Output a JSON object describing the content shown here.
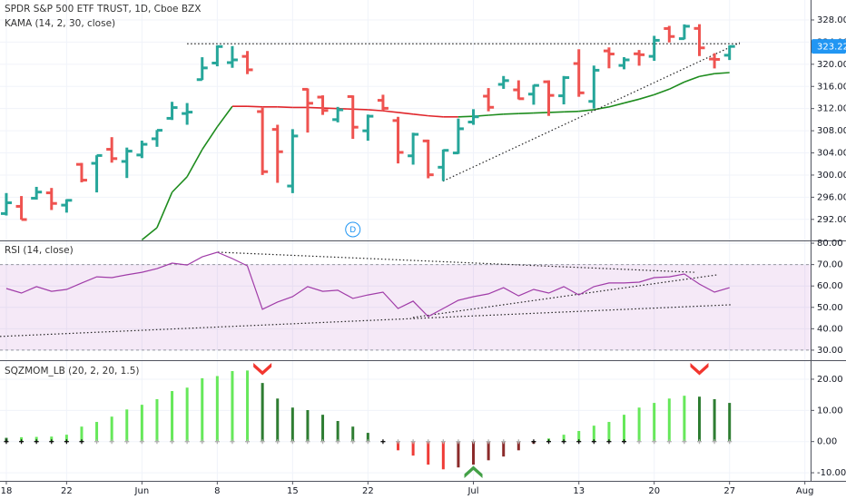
{
  "chart_data": [
    {
      "type": "ohlc",
      "title": "SPDR S&P 500 ETF TRUST, 1D, Cboe BZX",
      "x": [
        0,
        1,
        2,
        3,
        4,
        5,
        6,
        7,
        8,
        9,
        10,
        11,
        12,
        13,
        14,
        15,
        16,
        17,
        18,
        19,
        20,
        21,
        22,
        23,
        24,
        25,
        26,
        27,
        28,
        29,
        30,
        31,
        32,
        33,
        34,
        35,
        36,
        37,
        38,
        39,
        40,
        41,
        42,
        43,
        44,
        45,
        46,
        47,
        48
      ],
      "open": [
        293.05,
        294.35,
        295.82,
        296.79,
        294.57,
        301.93,
        302.12,
        304.65,
        302.46,
        303.62,
        306.55,
        310.24,
        311.11,
        317.23,
        320.22,
        320.3,
        321.42,
        311.46,
        308.24,
        298.02,
        315.48,
        314.07,
        310.01,
        314.17,
        307.99,
        313.49,
        309.84,
        303.47,
        306.16,
        301.41,
        303.99,
        309.57,
        314.24,
        316.37,
        315.38,
        314.61,
        316.84,
        314.31,
        320.13,
        313.3,
        322.41,
        319.79,
        321.89,
        321.43,
        326.45,
        324.62,
        326.47,
        320.95,
        321.63
      ],
      "high": [
        296.75,
        296.21,
        297.87,
        297.67,
        295.63,
        302.19,
        303.57,
        306.84,
        304.96,
        306.21,
        308.13,
        313.22,
        313.0,
        321.27,
        323.41,
        323.28,
        322.39,
        312.15,
        309.08,
        308.28,
        315.64,
        314.39,
        312.3,
        314.38,
        310.92,
        314.5,
        310.51,
        307.64,
        306.39,
        304.61,
        310.2,
        311.89,
        315.7,
        317.88,
        317.1,
        316.3,
        317.1,
        317.88,
        322.71,
        319.76,
        323.04,
        321.28,
        322.57,
        325.13,
        326.93,
        327.2,
        327.23,
        321.99,
        323.41
      ],
      "low": [
        292.7,
        291.95,
        295.57,
        293.69,
        293.22,
        298.69,
        296.87,
        302.24,
        299.47,
        303.06,
        305.1,
        309.94,
        309.08,
        317.16,
        319.63,
        319.36,
        318.22,
        300.01,
        298.6,
        296.74,
        307.67,
        310.86,
        309.51,
        306.53,
        306.2,
        311.61,
        302.1,
        301.88,
        299.42,
        298.93,
        303.82,
        309.07,
        311.51,
        315.56,
        313.67,
        312.7,
        310.68,
        312.76,
        314.13,
        312.0,
        319.27,
        319.09,
        319.74,
        320.62,
        323.94,
        324.5,
        321.48,
        319.25,
        320.77
      ],
      "close": [
        295.0,
        291.97,
        296.93,
        294.88,
        295.44,
        299.08,
        303.53,
        302.97,
        304.32,
        305.55,
        308.08,
        312.18,
        311.36,
        319.34,
        323.2,
        320.79,
        319.0,
        300.61,
        304.21,
        307.05,
        312.96,
        311.66,
        311.78,
        308.64,
        310.62,
        312.05,
        304.09,
        307.35,
        300.05,
        304.46,
        308.36,
        310.52,
        312.23,
        317.05,
        313.78,
        316.18,
        314.38,
        317.59,
        314.84,
        318.92,
        321.85,
        320.79,
        321.72,
        324.32,
        325.01,
        326.86,
        322.96,
        320.88,
        323.22
      ],
      "up_color": "#26a69a",
      "down_color": "#ef5350",
      "overlay": {
        "name": "KAMA (14, 2, 30, close)",
        "rising_color": "#1e8c1e",
        "falling_color": "#e0262b",
        "values": [
          null,
          null,
          null,
          null,
          null,
          null,
          null,
          null,
          null,
          288.3,
          290.5,
          296.9,
          299.7,
          304.6,
          308.7,
          312.4,
          312.4,
          312.3,
          312.3,
          312.2,
          312.2,
          312.1,
          312.0,
          311.9,
          311.8,
          311.6,
          311.3,
          311.0,
          310.7,
          310.5,
          310.5,
          310.6,
          310.8,
          311.0,
          311.1,
          311.2,
          311.3,
          311.4,
          311.5,
          311.8,
          312.3,
          313.0,
          313.7,
          314.5,
          315.5,
          316.8,
          317.8,
          318.3,
          318.5
        ]
      },
      "trendlines": [
        {
          "x": [
            12.0,
            48.68
          ],
          "y": [
            323.7,
            323.7
          ]
        },
        {
          "x": [
            28.98,
            48.68
          ],
          "y": [
            298.9,
            323.9
          ]
        }
      ],
      "annotations": [
        {
          "x": 23,
          "label": "D"
        }
      ],
      "last_label": "323.22",
      "xlim": [
        -0.42,
        53.38
      ],
      "ylim": [
        288.2,
        331.6
      ],
      "yticks": [
        {
          "value": 292,
          "label": "292.00"
        },
        {
          "value": 296,
          "label": "296.00"
        },
        {
          "value": 300,
          "label": "300.00"
        },
        {
          "value": 304,
          "label": "304.00"
        },
        {
          "value": 308,
          "label": "308.00"
        },
        {
          "value": 312,
          "label": "312.00"
        },
        {
          "value": 316,
          "label": "316.00"
        },
        {
          "value": 320,
          "label": "320.00"
        },
        {
          "value": 324,
          "label": "324.00"
        },
        {
          "value": 328,
          "label": "328.00"
        }
      ]
    },
    {
      "type": "line",
      "title": "RSI (14, close)",
      "color": "#a03ca8",
      "band": [
        30,
        70
      ],
      "band_color": "#9c27b0",
      "x": [
        0,
        1,
        2,
        3,
        4,
        5,
        6,
        7,
        8,
        9,
        10,
        11,
        12,
        13,
        14,
        15,
        16,
        17,
        18,
        19,
        20,
        21,
        22,
        23,
        24,
        25,
        26,
        27,
        28,
        29,
        30,
        31,
        32,
        33,
        34,
        35,
        36,
        37,
        38,
        39,
        40,
        41,
        42,
        43,
        44,
        45,
        46,
        47,
        48
      ],
      "values": [
        58.8,
        56.7,
        59.7,
        57.5,
        58.4,
        61.4,
        64.3,
        63.9,
        65.2,
        66.4,
        68.1,
        70.7,
        69.8,
        73.6,
        75.8,
        72.8,
        69.4,
        49.1,
        52.5,
        55.0,
        59.7,
        57.5,
        58.0,
        54.2,
        55.8,
        57.1,
        49.5,
        52.9,
        45.7,
        49.5,
        53.3,
        55.0,
        56.3,
        59.2,
        55.4,
        58.4,
        56.7,
        59.7,
        55.8,
        59.7,
        61.4,
        61.4,
        61.8,
        63.9,
        64.3,
        65.6,
        60.9,
        57.1,
        59.2
      ],
      "trendlines": [
        {
          "x": [
            14.04,
            45.66
          ],
          "y": [
            75.8,
            66.4
          ]
        },
        {
          "x": [
            -0.42,
            48.07
          ],
          "y": [
            36.4,
            51.2
          ]
        },
        {
          "x": [
            26.99,
            47.17
          ],
          "y": [
            45.3,
            65.2
          ]
        }
      ],
      "xlim": [
        -0.42,
        53.38
      ],
      "ylim": [
        25.3,
        81.3
      ],
      "yticks": [
        {
          "value": 80,
          "label": "80.00"
        },
        {
          "value": 70,
          "label": "70.00"
        },
        {
          "value": 60,
          "label": "60.00"
        },
        {
          "value": 50,
          "label": "50.00"
        },
        {
          "value": 40,
          "label": "40.00"
        },
        {
          "value": 30,
          "label": "30.00"
        }
      ]
    },
    {
      "type": "histogram",
      "title": "SQZMOM_LB (20, 2, 20, 1.5)",
      "colors": {
        "rise_pos": "#66e85a",
        "fall_pos": "#2e7d32",
        "fall_neg": "#ef3b36",
        "rise_neg": "#8b2a2a",
        "squeeze_on": "#111111",
        "squeeze_off": "#b0b0b0",
        "signal_up": "#43a047",
        "signal_down": "#f2362f"
      },
      "x": [
        0,
        1,
        2,
        3,
        4,
        5,
        6,
        7,
        8,
        9,
        10,
        11,
        12,
        13,
        14,
        15,
        16,
        17,
        18,
        19,
        20,
        21,
        22,
        23,
        24,
        25,
        26,
        27,
        28,
        29,
        30,
        31,
        32,
        33,
        34,
        35,
        36,
        37,
        38,
        39,
        40,
        41,
        42,
        43,
        44,
        45,
        46,
        47,
        48
      ],
      "values": [
        1.2,
        1.4,
        1.5,
        1.6,
        2.2,
        4.8,
        6.3,
        8.0,
        10.3,
        11.8,
        13.6,
        16.2,
        17.3,
        20.3,
        21.0,
        22.6,
        22.8,
        18.8,
        13.8,
        10.9,
        10.1,
        8.6,
        6.6,
        4.8,
        2.8,
        0.1,
        -2.8,
        -4.5,
        -7.4,
        -8.9,
        -8.3,
        -7.4,
        -6.0,
        -4.8,
        -2.8,
        -0.7,
        1.0,
        2.2,
        3.4,
        5.1,
        6.3,
        8.6,
        10.9,
        12.4,
        13.8,
        14.7,
        14.4,
        13.6,
        12.4
      ],
      "squeeze": [
        true,
        true,
        true,
        true,
        true,
        true,
        false,
        false,
        false,
        false,
        false,
        false,
        false,
        false,
        false,
        false,
        false,
        false,
        false,
        false,
        false,
        false,
        false,
        false,
        false,
        true,
        false,
        false,
        false,
        false,
        false,
        false,
        false,
        false,
        false,
        true,
        true,
        true,
        true,
        true,
        true,
        true,
        false,
        false,
        false,
        false,
        false,
        false,
        false
      ],
      "signals": [
        {
          "x": 17,
          "dir": "down"
        },
        {
          "x": 31,
          "dir": "up"
        },
        {
          "x": 46,
          "dir": "down"
        }
      ],
      "xlim": [
        -0.42,
        53.38
      ],
      "ylim": [
        -12.6,
        26.1
      ],
      "yticks": [
        {
          "value": 20,
          "label": "20.00"
        },
        {
          "value": 10,
          "label": "10.00"
        },
        {
          "value": 0,
          "label": "0.00"
        },
        {
          "value": -10,
          "label": "-10.00"
        }
      ],
      "xticks": [
        {
          "value": 0,
          "label": "18"
        },
        {
          "value": 4,
          "label": "22"
        },
        {
          "value": 9,
          "label": "Jun"
        },
        {
          "value": 14,
          "label": "8"
        },
        {
          "value": 19,
          "label": "15"
        },
        {
          "value": 24,
          "label": "22"
        },
        {
          "value": 31,
          "label": "Jul"
        },
        {
          "value": 38,
          "label": "13"
        },
        {
          "value": 43,
          "label": "20"
        },
        {
          "value": 48,
          "label": "27"
        },
        {
          "value": 53,
          "label": "Aug"
        }
      ]
    }
  ]
}
